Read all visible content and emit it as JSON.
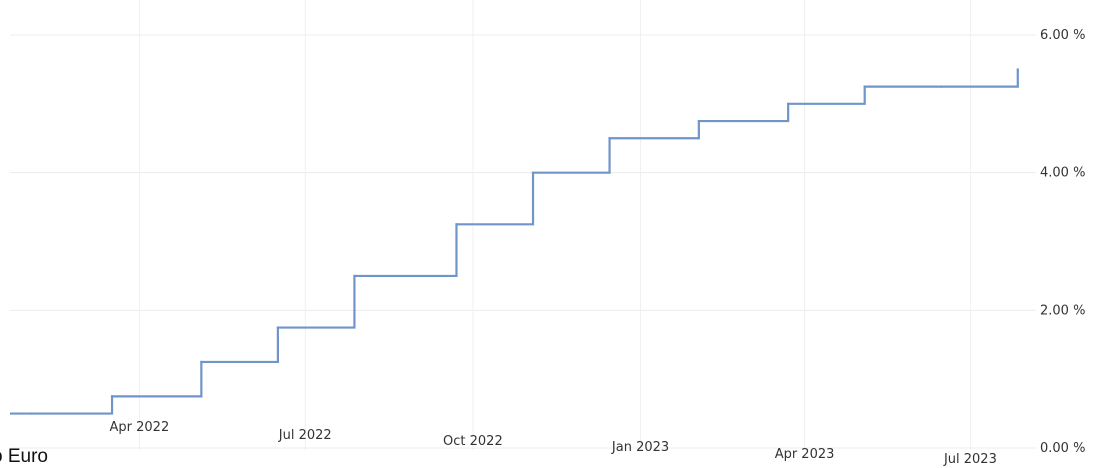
{
  "caption": "o Euro",
  "chart_data": {
    "type": "line",
    "step": true,
    "x": [
      "2022-02-01",
      "2022-03-17",
      "2022-05-05",
      "2022-06-16",
      "2022-07-28",
      "2022-09-22",
      "2022-11-03",
      "2022-12-15",
      "2023-02-02",
      "2023-03-23",
      "2023-05-04",
      "2023-06-15",
      "2023-07-27"
    ],
    "series": [
      {
        "values": [
          0.5,
          0.75,
          1.25,
          1.75,
          2.5,
          3.25,
          4.0,
          4.5,
          4.75,
          5.0,
          5.25,
          5.25,
          5.5
        ]
      }
    ],
    "xticks": [
      "Apr 2022",
      "Jul 2022",
      "Oct 2022",
      "Jan 2023",
      "Apr 2023",
      "Jul 2023"
    ],
    "yticks": [
      "0.00 %",
      "2.00 %",
      "4.00 %",
      "6.00 %"
    ],
    "ylim": [
      0,
      6
    ],
    "grid": true,
    "line_color": "#6f95c9"
  }
}
